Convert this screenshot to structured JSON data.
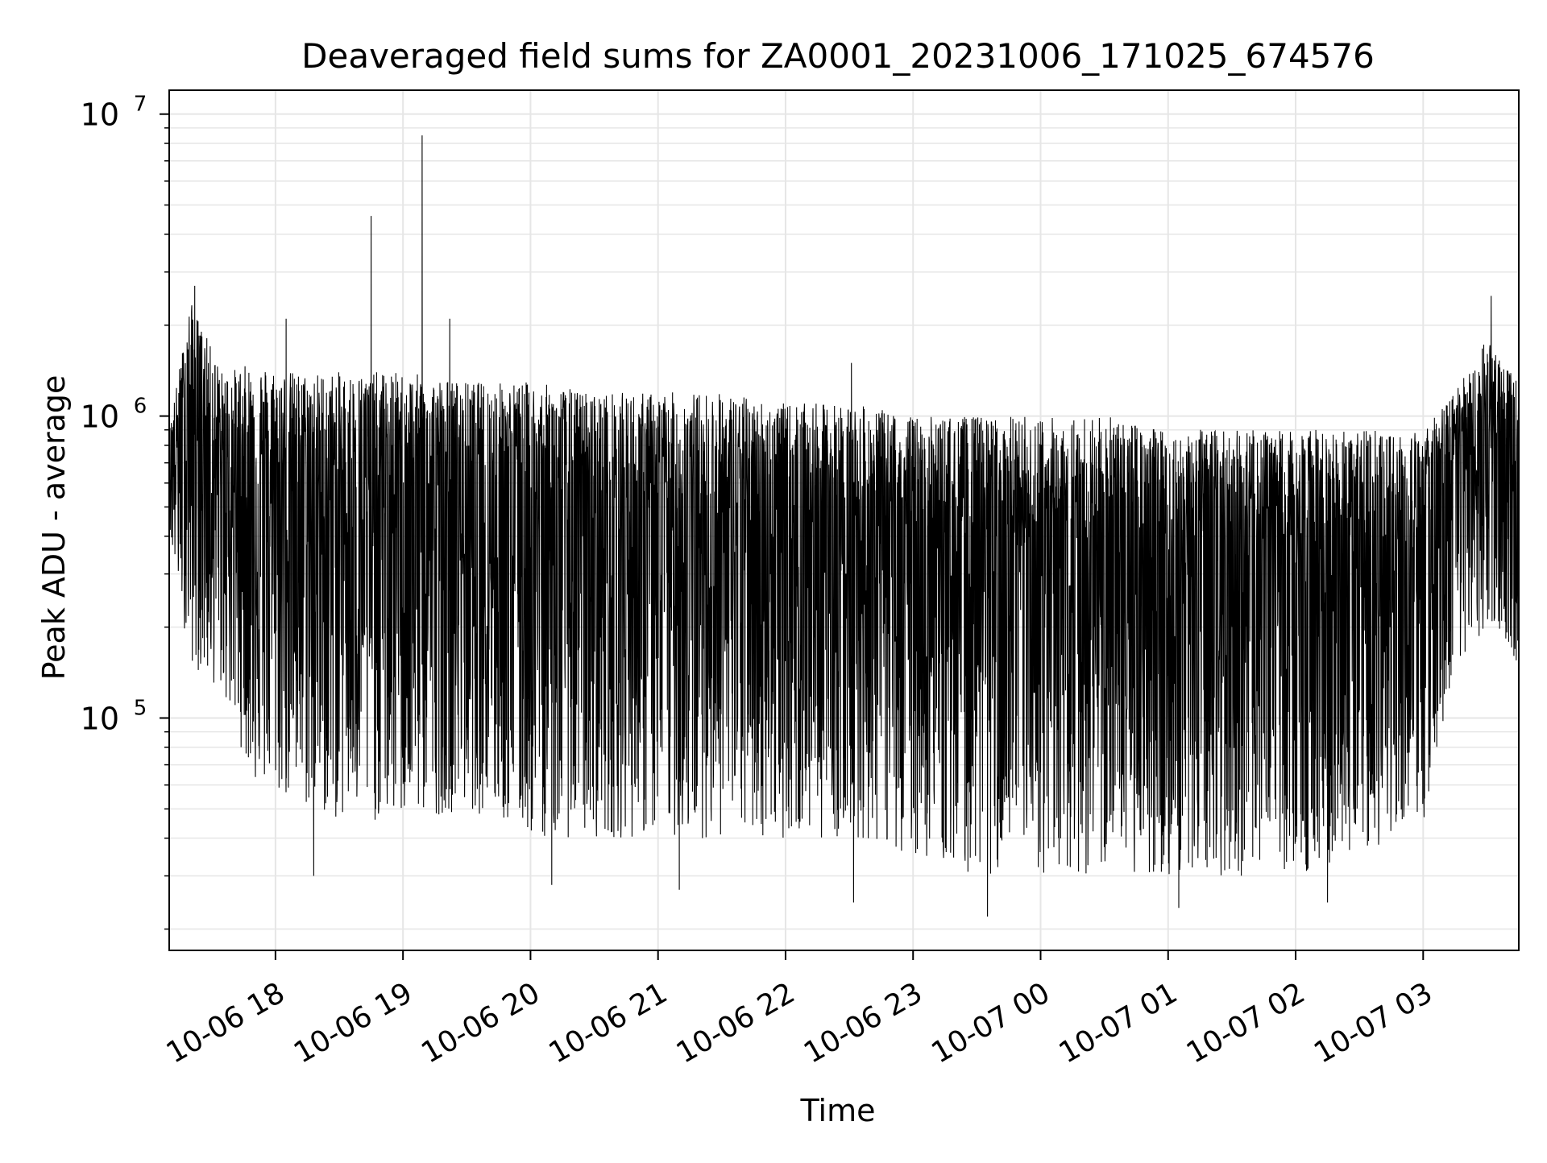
{
  "chart_data": {
    "type": "line",
    "title": "Deaveraged field sums for ZA0001_20231006_171025_674576",
    "xlabel": "Time",
    "ylabel": "Peak ADU - average",
    "yscale": "log",
    "ylim": [
      17000,
      12000000
    ],
    "xlim": [
      "2023-10-06 17:10",
      "2023-10-07 03:45"
    ],
    "grid": true,
    "line_color": "#000000",
    "grid_color": "#e6e6e6",
    "x_ticks": [
      {
        "t": "2023-10-06 18:00",
        "label": "10-06 18"
      },
      {
        "t": "2023-10-06 19:00",
        "label": "10-06 19"
      },
      {
        "t": "2023-10-06 20:00",
        "label": "10-06 20"
      },
      {
        "t": "2023-10-06 21:00",
        "label": "10-06 21"
      },
      {
        "t": "2023-10-06 22:00",
        "label": "10-06 22"
      },
      {
        "t": "2023-10-06 23:00",
        "label": "10-06 23"
      },
      {
        "t": "2023-10-07 00:00",
        "label": "10-07 00"
      },
      {
        "t": "2023-10-07 01:00",
        "label": "10-07 01"
      },
      {
        "t": "2023-10-07 02:00",
        "label": "10-07 02"
      },
      {
        "t": "2023-10-07 03:00",
        "label": "10-07 03"
      }
    ],
    "y_ticks": [
      {
        "value": 100000,
        "base": "10",
        "exp": "5"
      },
      {
        "value": 1000000,
        "base": "10",
        "exp": "6"
      },
      {
        "value": 10000000,
        "base": "10",
        "exp": "7"
      }
    ],
    "envelope": [
      {
        "t": "2023-10-06 17:10",
        "upper": 900000,
        "lower": 400000
      },
      {
        "t": "2023-10-06 17:20",
        "upper": 2400000,
        "lower": 150000
      },
      {
        "t": "2023-10-06 17:35",
        "upper": 1400000,
        "lower": 120000
      },
      {
        "t": "2023-10-06 17:50",
        "upper": 1500000,
        "lower": 60000
      },
      {
        "t": "2023-10-06 18:10",
        "upper": 1400000,
        "lower": 50000
      },
      {
        "t": "2023-10-06 18:30",
        "upper": 1400000,
        "lower": 45000
      },
      {
        "t": "2023-10-06 19:00",
        "upper": 1400000,
        "lower": 45000
      },
      {
        "t": "2023-10-06 19:30",
        "upper": 1300000,
        "lower": 50000
      },
      {
        "t": "2023-10-06 20:00",
        "upper": 1300000,
        "lower": 40000
      },
      {
        "t": "2023-10-06 20:30",
        "upper": 1200000,
        "lower": 40000
      },
      {
        "t": "2023-10-06 21:00",
        "upper": 1200000,
        "lower": 40000
      },
      {
        "t": "2023-10-06 21:30",
        "upper": 1200000,
        "lower": 40000
      },
      {
        "t": "2023-10-06 22:00",
        "upper": 1100000,
        "lower": 40000
      },
      {
        "t": "2023-10-06 22:30",
        "upper": 1100000,
        "lower": 40000
      },
      {
        "t": "2023-10-06 23:00",
        "upper": 1000000,
        "lower": 35000
      },
      {
        "t": "2023-10-06 23:30",
        "upper": 1000000,
        "lower": 30000
      },
      {
        "t": "2023-10-07 00:00",
        "upper": 1000000,
        "lower": 30000
      },
      {
        "t": "2023-10-07 00:30",
        "upper": 1000000,
        "lower": 30000
      },
      {
        "t": "2023-10-07 01:00",
        "upper": 900000,
        "lower": 30000
      },
      {
        "t": "2023-10-07 01:30",
        "upper": 900000,
        "lower": 30000
      },
      {
        "t": "2023-10-07 02:00",
        "upper": 900000,
        "lower": 30000
      },
      {
        "t": "2023-10-07 02:30",
        "upper": 900000,
        "lower": 35000
      },
      {
        "t": "2023-10-07 03:00",
        "upper": 900000,
        "lower": 40000
      },
      {
        "t": "2023-10-07 03:15",
        "upper": 1200000,
        "lower": 120000
      },
      {
        "t": "2023-10-07 03:30",
        "upper": 1800000,
        "lower": 200000
      },
      {
        "t": "2023-10-07 03:45",
        "upper": 1300000,
        "lower": 150000
      }
    ],
    "spikes": [
      {
        "t": "2023-10-06 17:22",
        "value": 2700000
      },
      {
        "t": "2023-10-06 18:05",
        "value": 2100000
      },
      {
        "t": "2023-10-06 18:45",
        "value": 4600000
      },
      {
        "t": "2023-10-06 19:09",
        "value": 8500000
      },
      {
        "t": "2023-10-06 19:22",
        "value": 2100000
      },
      {
        "t": "2023-10-06 22:31",
        "value": 1500000
      },
      {
        "t": "2023-10-07 03:32",
        "value": 2500000
      }
    ],
    "dips": [
      {
        "t": "2023-10-06 18:18",
        "value": 30000
      },
      {
        "t": "2023-10-06 20:10",
        "value": 28000
      },
      {
        "t": "2023-10-06 21:10",
        "value": 27000
      },
      {
        "t": "2023-10-06 22:32",
        "value": 24500
      },
      {
        "t": "2023-10-06 23:35",
        "value": 22000
      },
      {
        "t": "2023-10-07 01:05",
        "value": 23500
      },
      {
        "t": "2023-10-07 02:15",
        "value": 24500
      }
    ]
  }
}
